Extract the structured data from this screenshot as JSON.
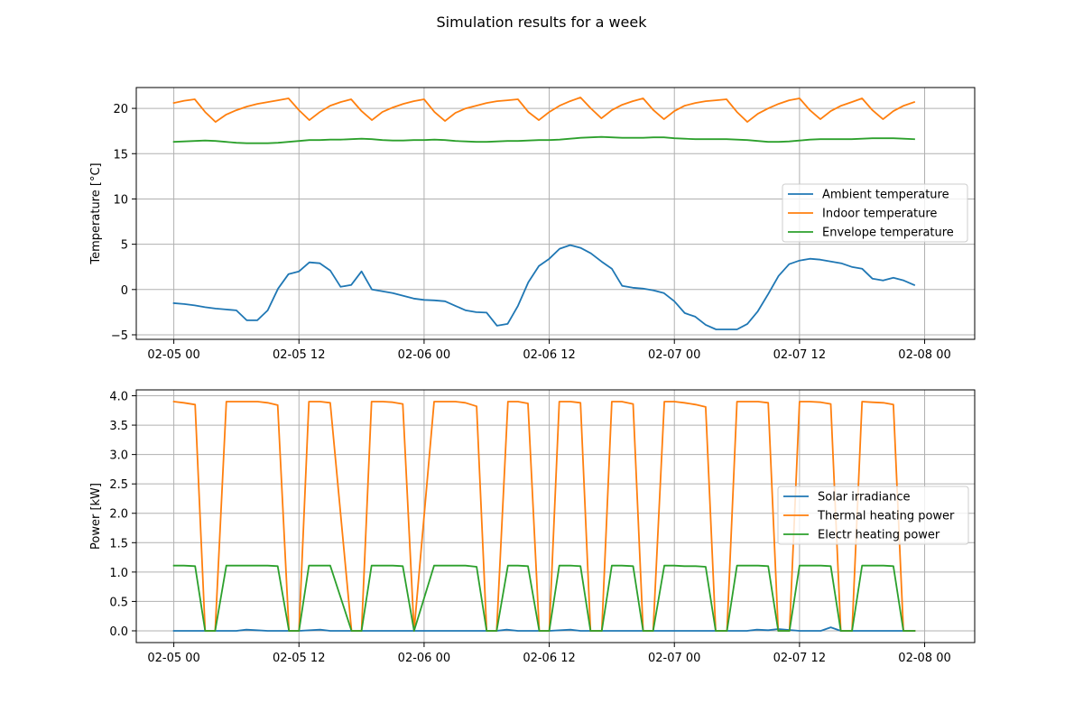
{
  "title": "Simulation results for a week",
  "colors": {
    "blue": "#1f77b4",
    "orange": "#ff7f0e",
    "green": "#2ca02c",
    "grid": "#b0b0b0"
  },
  "chart_data": [
    {
      "type": "line",
      "xlabel": "",
      "ylabel": "Temperature [°C]",
      "grid": true,
      "legend_position": "center-right",
      "xlim": [
        -0.3,
        6.4
      ],
      "ylim": [
        -5.5,
        22.3
      ],
      "xticks": [
        0,
        1,
        2,
        3,
        4,
        5,
        6
      ],
      "xtick_labels": [
        "02-05 00",
        "02-05 12",
        "02-06 00",
        "02-06 12",
        "02-07 00",
        "02-07 12",
        "02-08 00"
      ],
      "yticks": [
        -5,
        0,
        5,
        10,
        15,
        20
      ],
      "ytick_labels": [
        "−5",
        "0",
        "5",
        "10",
        "15",
        "20"
      ],
      "series": [
        {
          "name": "Ambient temperature",
          "color": "#1f77b4",
          "x": [
            0,
            0.083,
            0.167,
            0.25,
            0.333,
            0.417,
            0.5,
            0.583,
            0.667,
            0.75,
            0.833,
            0.917,
            1,
            1.083,
            1.167,
            1.25,
            1.333,
            1.417,
            1.5,
            1.583,
            1.667,
            1.75,
            1.833,
            1.917,
            2,
            2.083,
            2.167,
            2.25,
            2.333,
            2.417,
            2.5,
            2.583,
            2.667,
            2.75,
            2.833,
            2.917,
            3,
            3.083,
            3.167,
            3.25,
            3.333,
            3.417,
            3.5,
            3.583,
            3.667,
            3.75,
            3.833,
            3.917,
            4,
            4.083,
            4.167,
            4.25,
            4.333,
            4.417,
            4.5,
            4.583,
            4.667,
            4.75,
            4.833,
            4.917,
            5,
            5.083,
            5.167,
            5.25,
            5.333,
            5.417,
            5.5,
            5.583,
            5.667,
            5.75,
            5.833,
            5.917
          ],
          "values": [
            -1.5,
            -1.6,
            -1.75,
            -1.95,
            -2.1,
            -2.2,
            -2.3,
            -3.4,
            -3.4,
            -2.3,
            0.1,
            1.7,
            2.0,
            3.0,
            2.9,
            2.1,
            0.3,
            0.5,
            2.0,
            0.0,
            -0.2,
            -0.4,
            -0.7,
            -1.0,
            -1.15,
            -1.2,
            -1.3,
            -1.8,
            -2.3,
            -2.5,
            -2.55,
            -4.0,
            -3.8,
            -1.8,
            0.8,
            2.6,
            3.4,
            4.5,
            4.9,
            4.6,
            4.0,
            3.1,
            2.3,
            0.4,
            0.2,
            0.1,
            -0.1,
            -0.4,
            -1.3,
            -2.6,
            -3.0,
            -3.9,
            -4.4,
            -4.4,
            -4.4,
            -3.8,
            -2.4,
            -0.5,
            1.5,
            2.8,
            3.2,
            3.4,
            3.3,
            3.1,
            2.9,
            2.5,
            2.3,
            1.2,
            1.0,
            1.3,
            1.0,
            0.5
          ]
        },
        {
          "name": "Indoor temperature",
          "color": "#ff7f0e",
          "x": [
            0,
            0.083,
            0.167,
            0.25,
            0.333,
            0.417,
            0.5,
            0.583,
            0.667,
            0.75,
            0.833,
            0.917,
            1,
            1.083,
            1.167,
            1.25,
            1.333,
            1.417,
            1.5,
            1.583,
            1.667,
            1.75,
            1.833,
            1.917,
            2,
            2.083,
            2.167,
            2.25,
            2.333,
            2.417,
            2.5,
            2.583,
            2.667,
            2.75,
            2.833,
            2.917,
            3,
            3.083,
            3.167,
            3.25,
            3.333,
            3.417,
            3.5,
            3.583,
            3.667,
            3.75,
            3.833,
            3.917,
            4,
            4.083,
            4.167,
            4.25,
            4.333,
            4.417,
            4.5,
            4.583,
            4.667,
            4.75,
            4.833,
            4.917,
            5,
            5.083,
            5.167,
            5.25,
            5.333,
            5.417,
            5.5,
            5.583,
            5.667,
            5.75,
            5.833,
            5.917
          ],
          "values": [
            20.6,
            20.85,
            21.0,
            19.6,
            18.5,
            19.3,
            19.8,
            20.2,
            20.5,
            20.7,
            20.9,
            21.1,
            19.8,
            18.7,
            19.6,
            20.3,
            20.7,
            21.0,
            19.7,
            18.7,
            19.6,
            20.1,
            20.5,
            20.8,
            21.0,
            19.6,
            18.6,
            19.5,
            20.0,
            20.3,
            20.6,
            20.8,
            20.9,
            21.0,
            19.6,
            18.7,
            19.6,
            20.3,
            20.8,
            21.2,
            20.0,
            18.9,
            19.8,
            20.4,
            20.8,
            21.1,
            19.8,
            18.8,
            19.7,
            20.3,
            20.6,
            20.8,
            20.9,
            21.0,
            19.6,
            18.5,
            19.4,
            20.0,
            20.5,
            20.9,
            21.1,
            19.8,
            18.8,
            19.7,
            20.3,
            20.7,
            21.1,
            19.8,
            18.8,
            19.7,
            20.3,
            20.7
          ]
        },
        {
          "name": "Envelope temperature",
          "color": "#2ca02c",
          "x": [
            0,
            0.083,
            0.167,
            0.25,
            0.333,
            0.417,
            0.5,
            0.583,
            0.667,
            0.75,
            0.833,
            0.917,
            1,
            1.083,
            1.167,
            1.25,
            1.333,
            1.417,
            1.5,
            1.583,
            1.667,
            1.75,
            1.833,
            1.917,
            2,
            2.083,
            2.167,
            2.25,
            2.333,
            2.417,
            2.5,
            2.583,
            2.667,
            2.75,
            2.833,
            2.917,
            3,
            3.083,
            3.167,
            3.25,
            3.333,
            3.417,
            3.5,
            3.583,
            3.667,
            3.75,
            3.833,
            3.917,
            4,
            4.083,
            4.167,
            4.25,
            4.333,
            4.417,
            4.5,
            4.583,
            4.667,
            4.75,
            4.833,
            4.917,
            5,
            5.083,
            5.167,
            5.25,
            5.333,
            5.417,
            5.5,
            5.583,
            5.667,
            5.75,
            5.833,
            5.917
          ],
          "values": [
            16.3,
            16.35,
            16.4,
            16.45,
            16.4,
            16.3,
            16.2,
            16.15,
            16.15,
            16.15,
            16.2,
            16.3,
            16.4,
            16.5,
            16.5,
            16.55,
            16.55,
            16.6,
            16.65,
            16.6,
            16.5,
            16.45,
            16.45,
            16.5,
            16.5,
            16.55,
            16.5,
            16.4,
            16.35,
            16.3,
            16.3,
            16.35,
            16.4,
            16.4,
            16.45,
            16.5,
            16.5,
            16.55,
            16.65,
            16.75,
            16.8,
            16.85,
            16.8,
            16.75,
            16.75,
            16.75,
            16.8,
            16.8,
            16.7,
            16.65,
            16.6,
            16.6,
            16.6,
            16.6,
            16.55,
            16.5,
            16.4,
            16.3,
            16.3,
            16.35,
            16.45,
            16.55,
            16.6,
            16.6,
            16.6,
            16.6,
            16.65,
            16.7,
            16.7,
            16.7,
            16.65,
            16.6
          ]
        }
      ]
    },
    {
      "type": "line",
      "xlabel": "",
      "ylabel": "Power [kW]",
      "grid": true,
      "legend_position": "center-right",
      "xlim": [
        -0.3,
        6.4
      ],
      "ylim": [
        -0.2,
        4.1
      ],
      "xticks": [
        0,
        1,
        2,
        3,
        4,
        5,
        6
      ],
      "xtick_labels": [
        "02-05 00",
        "02-05 12",
        "02-06 00",
        "02-06 12",
        "02-07 00",
        "02-07 12",
        "02-08 00"
      ],
      "yticks": [
        0.0,
        0.5,
        1.0,
        1.5,
        2.0,
        2.5,
        3.0,
        3.5,
        4.0
      ],
      "ytick_labels": [
        "0.0",
        "0.5",
        "1.0",
        "1.5",
        "2.0",
        "2.5",
        "3.0",
        "3.5",
        "4.0"
      ],
      "series": [
        {
          "name": "Solar irradiance",
          "color": "#1f77b4",
          "x": [
            0,
            0.5,
            0.58,
            0.66,
            0.75,
            0.83,
            1.0,
            1.17,
            1.25,
            1.33,
            2.0,
            2.58,
            2.66,
            2.75,
            3.0,
            3.17,
            3.25,
            3.33,
            4.0,
            4.58,
            4.66,
            4.75,
            4.83,
            5.0,
            5.17,
            5.25,
            5.33,
            5.5,
            5.92
          ],
          "values": [
            0.0,
            0.0,
            0.02,
            0.01,
            0.0,
            0.0,
            0.0,
            0.02,
            0.0,
            0.0,
            0.0,
            0.0,
            0.02,
            0.0,
            0.0,
            0.02,
            0.0,
            0.0,
            0.0,
            0.0,
            0.02,
            0.01,
            0.03,
            0.0,
            0.0,
            0.06,
            0.0,
            0.0,
            0.0
          ]
        },
        {
          "name": "Thermal heating power",
          "color": "#ff7f0e",
          "x": [
            0,
            0.08,
            0.17,
            0.25,
            0.33,
            0.42,
            0.5,
            0.58,
            0.67,
            0.75,
            0.83,
            0.92,
            1.0,
            1.08,
            1.17,
            1.25,
            1.42,
            1.5,
            1.58,
            1.67,
            1.75,
            1.83,
            1.92,
            2.08,
            2.17,
            2.25,
            2.33,
            2.42,
            2.5,
            2.58,
            2.67,
            2.75,
            2.83,
            2.92,
            3.0,
            3.08,
            3.17,
            3.25,
            3.33,
            3.42,
            3.5,
            3.58,
            3.67,
            3.75,
            3.83,
            3.92,
            4.0,
            4.08,
            4.17,
            4.25,
            4.33,
            4.42,
            4.5,
            4.58,
            4.67,
            4.75,
            4.83,
            4.92,
            5.0,
            5.08,
            5.17,
            5.25,
            5.33,
            5.42,
            5.5,
            5.58,
            5.67,
            5.75,
            5.83,
            5.92
          ],
          "values": [
            3.9,
            3.88,
            3.85,
            0.0,
            0.0,
            3.9,
            3.9,
            3.9,
            3.9,
            3.88,
            3.84,
            0.0,
            0.0,
            3.9,
            3.9,
            3.88,
            0.0,
            0.0,
            3.9,
            3.9,
            3.89,
            3.86,
            0.0,
            3.9,
            3.9,
            3.9,
            3.88,
            3.82,
            0.0,
            0.0,
            3.9,
            3.9,
            3.87,
            0.0,
            0.0,
            3.9,
            3.9,
            3.88,
            0.0,
            0.0,
            3.9,
            3.9,
            3.86,
            0.0,
            0.0,
            3.9,
            3.9,
            3.88,
            3.85,
            3.81,
            0.0,
            0.0,
            3.9,
            3.9,
            3.9,
            3.88,
            0.0,
            0.0,
            3.9,
            3.9,
            3.89,
            3.86,
            0.0,
            0.0,
            3.9,
            3.89,
            3.88,
            3.85,
            0.0,
            0.0
          ]
        },
        {
          "name": "Electr heating power",
          "color": "#2ca02c",
          "x": [
            0,
            0.08,
            0.17,
            0.25,
            0.33,
            0.42,
            0.5,
            0.58,
            0.67,
            0.75,
            0.83,
            0.92,
            1.0,
            1.08,
            1.17,
            1.25,
            1.42,
            1.5,
            1.58,
            1.67,
            1.75,
            1.83,
            1.92,
            2.08,
            2.17,
            2.25,
            2.33,
            2.42,
            2.5,
            2.58,
            2.67,
            2.75,
            2.83,
            2.92,
            3.0,
            3.08,
            3.17,
            3.25,
            3.33,
            3.42,
            3.5,
            3.58,
            3.67,
            3.75,
            3.83,
            3.92,
            4.0,
            4.08,
            4.17,
            4.25,
            4.33,
            4.42,
            4.5,
            4.58,
            4.67,
            4.75,
            4.83,
            4.92,
            5.0,
            5.08,
            5.17,
            5.25,
            5.33,
            5.42,
            5.5,
            5.58,
            5.67,
            5.75,
            5.83,
            5.92
          ],
          "values": [
            1.11,
            1.11,
            1.1,
            0.0,
            0.0,
            1.11,
            1.11,
            1.11,
            1.11,
            1.11,
            1.1,
            0.0,
            0.0,
            1.11,
            1.11,
            1.11,
            0.0,
            0.0,
            1.11,
            1.11,
            1.11,
            1.1,
            0.0,
            1.11,
            1.11,
            1.11,
            1.11,
            1.09,
            0.0,
            0.0,
            1.11,
            1.11,
            1.1,
            0.0,
            0.0,
            1.11,
            1.11,
            1.1,
            0.0,
            0.0,
            1.11,
            1.11,
            1.1,
            0.0,
            0.0,
            1.11,
            1.11,
            1.1,
            1.1,
            1.09,
            0.0,
            0.0,
            1.11,
            1.11,
            1.11,
            1.1,
            0.0,
            0.0,
            1.11,
            1.11,
            1.11,
            1.1,
            0.0,
            0.0,
            1.11,
            1.11,
            1.11,
            1.1,
            0.0,
            0.0
          ]
        }
      ]
    }
  ]
}
